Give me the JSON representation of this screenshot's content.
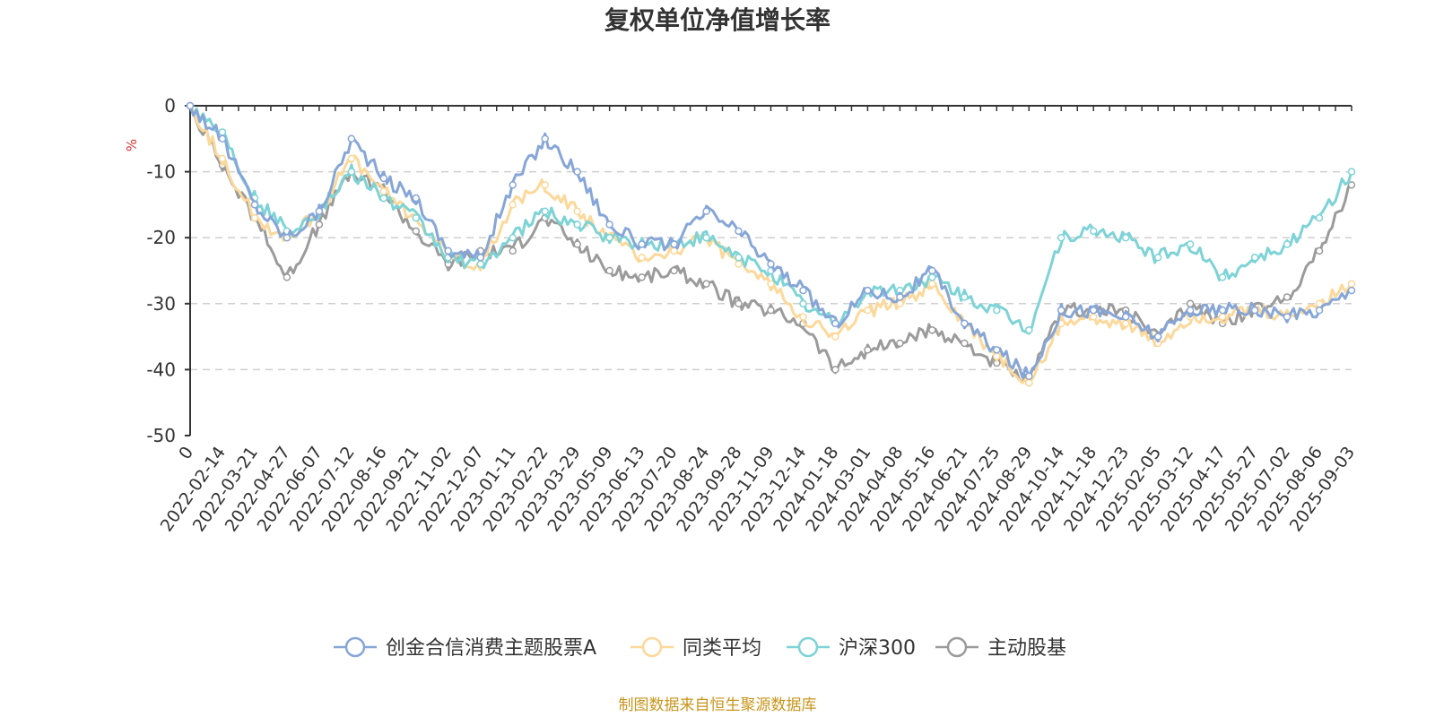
{
  "chart_data": {
    "type": "line",
    "title": "复权单位净值增长率",
    "ylabel": "%",
    "ylim": [
      -50,
      0
    ],
    "yticks": [
      0,
      -10,
      -20,
      -30,
      -40,
      -50
    ],
    "grid": true,
    "legend_position": "bottom",
    "source_note": "制图数据来自恒生聚源数据库",
    "x_tick_labels": [
      "0",
      "2022-02-14",
      "2022-03-21",
      "2022-04-27",
      "2022-06-07",
      "2022-07-12",
      "2022-08-16",
      "2022-09-21",
      "2022-11-02",
      "2022-12-07",
      "2023-01-11",
      "2023-02-22",
      "2023-03-29",
      "2023-05-09",
      "2023-06-13",
      "2023-07-20",
      "2023-08-24",
      "2023-09-28",
      "2023-11-09",
      "2023-12-14",
      "2024-01-18",
      "2024-03-01",
      "2024-04-08",
      "2024-05-16",
      "2024-06-21",
      "2024-07-25",
      "2024-08-29",
      "2024-10-14",
      "2024-11-18",
      "2024-12-23",
      "2025-02-05",
      "2025-03-12",
      "2025-04-17",
      "2025-05-27",
      "2025-07-02",
      "2025-08-06",
      "2025-09-03"
    ],
    "x": [
      "0",
      "2022-02-14",
      "2022-03-21",
      "2022-04-27",
      "2022-06-07",
      "2022-07-12",
      "2022-08-16",
      "2022-09-21",
      "2022-11-02",
      "2022-12-07",
      "2023-01-11",
      "2023-02-22",
      "2023-03-29",
      "2023-05-09",
      "2023-06-13",
      "2023-07-20",
      "2023-08-24",
      "2023-09-28",
      "2023-11-09",
      "2023-12-14",
      "2024-01-18",
      "2024-03-01",
      "2024-04-08",
      "2024-05-16",
      "2024-06-21",
      "2024-07-25",
      "2024-08-29",
      "2024-10-14",
      "2024-11-18",
      "2024-12-23",
      "2025-02-05",
      "2025-03-12",
      "2025-04-17",
      "2025-05-27",
      "2025-07-02",
      "2025-08-06",
      "2025-09-03"
    ],
    "series": [
      {
        "name": "创金合信消费主题股票A",
        "color": "#87a6d8",
        "values": [
          0,
          -5,
          -15,
          -20,
          -16,
          -5,
          -11,
          -14,
          -22,
          -23,
          -12,
          -5,
          -10,
          -18,
          -21,
          -21,
          -16,
          -19,
          -24,
          -28,
          -33,
          -28,
          -29,
          -25,
          -33,
          -37,
          -41,
          -31,
          -31,
          -32,
          -35,
          -31,
          -31,
          -31,
          -32,
          -31,
          -28
        ]
      },
      {
        "name": "同类平均",
        "color": "#fcd89a",
        "values": [
          0,
          -8,
          -17,
          -20,
          -16,
          -8,
          -13,
          -17,
          -23,
          -24,
          -15,
          -12,
          -16,
          -20,
          -23,
          -22,
          -20,
          -24,
          -27,
          -32,
          -35,
          -31,
          -30,
          -27,
          -33,
          -38,
          -42,
          -33,
          -32,
          -33,
          -36,
          -32,
          -32,
          -31,
          -32,
          -30,
          -27
        ]
      },
      {
        "name": "沪深300",
        "color": "#7ed3d6",
        "values": [
          0,
          -4,
          -14,
          -19,
          -16,
          -10,
          -14,
          -17,
          -23,
          -24,
          -20,
          -16,
          -18,
          -20,
          -21,
          -21,
          -20,
          -23,
          -25,
          -30,
          -33,
          -28,
          -28,
          -26,
          -29,
          -31,
          -34,
          -20,
          -19,
          -20,
          -23,
          -21,
          -26,
          -23,
          -21,
          -17,
          -10
        ]
      },
      {
        "name": "主动股基",
        "color": "#9b9b9b",
        "values": [
          0,
          -9,
          -17,
          -26,
          -18,
          -10,
          -13,
          -19,
          -24,
          -22,
          -22,
          -17,
          -21,
          -25,
          -26,
          -25,
          -27,
          -30,
          -31,
          -33,
          -40,
          -37,
          -36,
          -34,
          -36,
          -39,
          -42,
          -31,
          -31,
          -31,
          -35,
          -30,
          -33,
          -31,
          -29,
          -22,
          -12
        ]
      }
    ]
  }
}
